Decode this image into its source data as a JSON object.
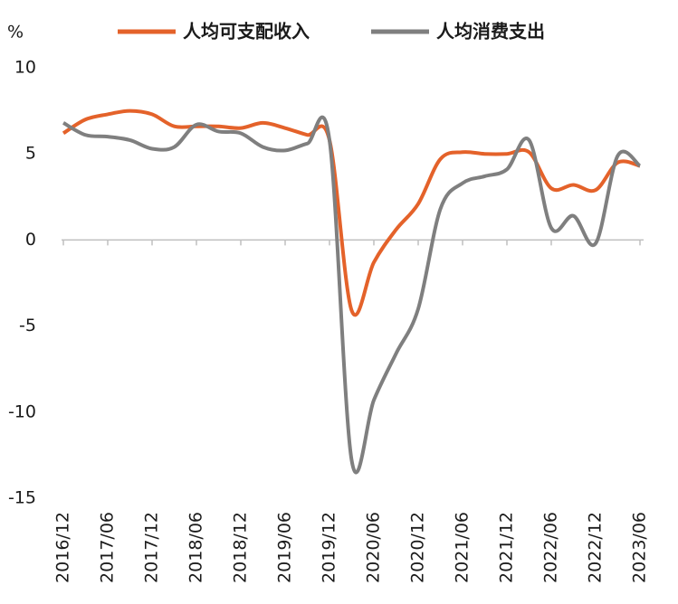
{
  "chart_data": {
    "type": "line",
    "unit_label": "%",
    "categories": [
      "2016/12",
      null,
      "2017/06",
      null,
      "2017/12",
      null,
      "2018/06",
      null,
      "2018/12",
      null,
      "2019/06",
      null,
      "2019/12",
      null,
      "2020/06",
      null,
      "2020/12",
      null,
      "2021/06",
      null,
      "2021/12",
      null,
      "2022/06",
      null,
      "2022/12",
      null,
      "2023/06"
    ],
    "series": [
      {
        "name": "人均可支配收入",
        "color": "#e4622a",
        "values": [
          6.2,
          7.0,
          7.3,
          7.5,
          7.3,
          6.6,
          6.6,
          6.6,
          6.5,
          6.8,
          6.5,
          6.1,
          5.8,
          -4.1,
          -1.3,
          0.6,
          2.1,
          4.7,
          5.1,
          5.0,
          5.0,
          5.1,
          3.0,
          3.2,
          2.9,
          4.5,
          4.3
        ]
      },
      {
        "name": "人均消费支出",
        "color": "#7f7f7f",
        "values": [
          6.8,
          6.1,
          6.0,
          5.8,
          5.3,
          5.4,
          6.7,
          6.3,
          6.2,
          5.4,
          5.2,
          5.6,
          5.8,
          -12.8,
          -9.3,
          -6.6,
          -4.0,
          1.8,
          3.3,
          3.7,
          4.1,
          5.8,
          0.7,
          1.4,
          -0.2,
          4.9,
          4.3
        ]
      }
    ],
    "ylim": [
      -15,
      10
    ],
    "yticks": [
      -15,
      -10,
      -5,
      0,
      5,
      10
    ],
    "grid": false
  }
}
